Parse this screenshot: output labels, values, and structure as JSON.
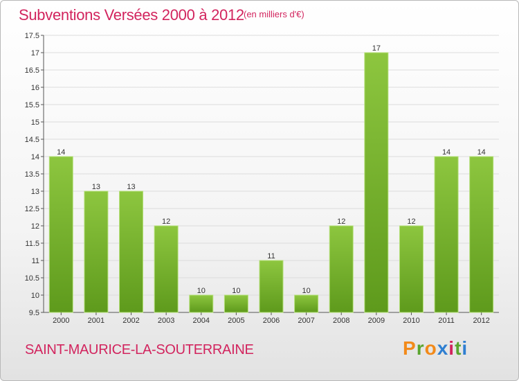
{
  "title": "Subventions Versées 2000 à 2012",
  "unit": "(en milliers d'€)",
  "commune": "SAINT-MAURICE-LA-SOUTERRAINE",
  "logo": {
    "letters": [
      "P",
      "r",
      "o",
      "x",
      "i",
      "t",
      "i"
    ],
    "colors": [
      "#f28a1a",
      "#5aa52e",
      "#f28a1a",
      "#2f7fd1",
      "#d2245e",
      "#5aa52e",
      "#2f7fd1"
    ]
  },
  "colors": {
    "bar": "#8dc63f",
    "bar_dark": "#5e9a1c",
    "accent": "#d2245e"
  },
  "chart_data": {
    "type": "bar",
    "categories": [
      "2000",
      "2001",
      "2002",
      "2003",
      "2004",
      "2005",
      "2006",
      "2007",
      "2008",
      "2009",
      "2010",
      "2011",
      "2012"
    ],
    "values": [
      14,
      13,
      13,
      12,
      10,
      10,
      11,
      10,
      12,
      17,
      12,
      14,
      14
    ],
    "title": "Subventions Versées 2000 à 2012",
    "ylim": [
      9.5,
      17.5
    ],
    "yticks": [
      "9.5",
      "10",
      "10.5",
      "11",
      "11.5",
      "12",
      "12.5",
      "13",
      "13.5",
      "14",
      "14.5",
      "15",
      "15.5",
      "16",
      "16.5",
      "17",
      "17.5"
    ],
    "grid": true,
    "legend": "none"
  }
}
